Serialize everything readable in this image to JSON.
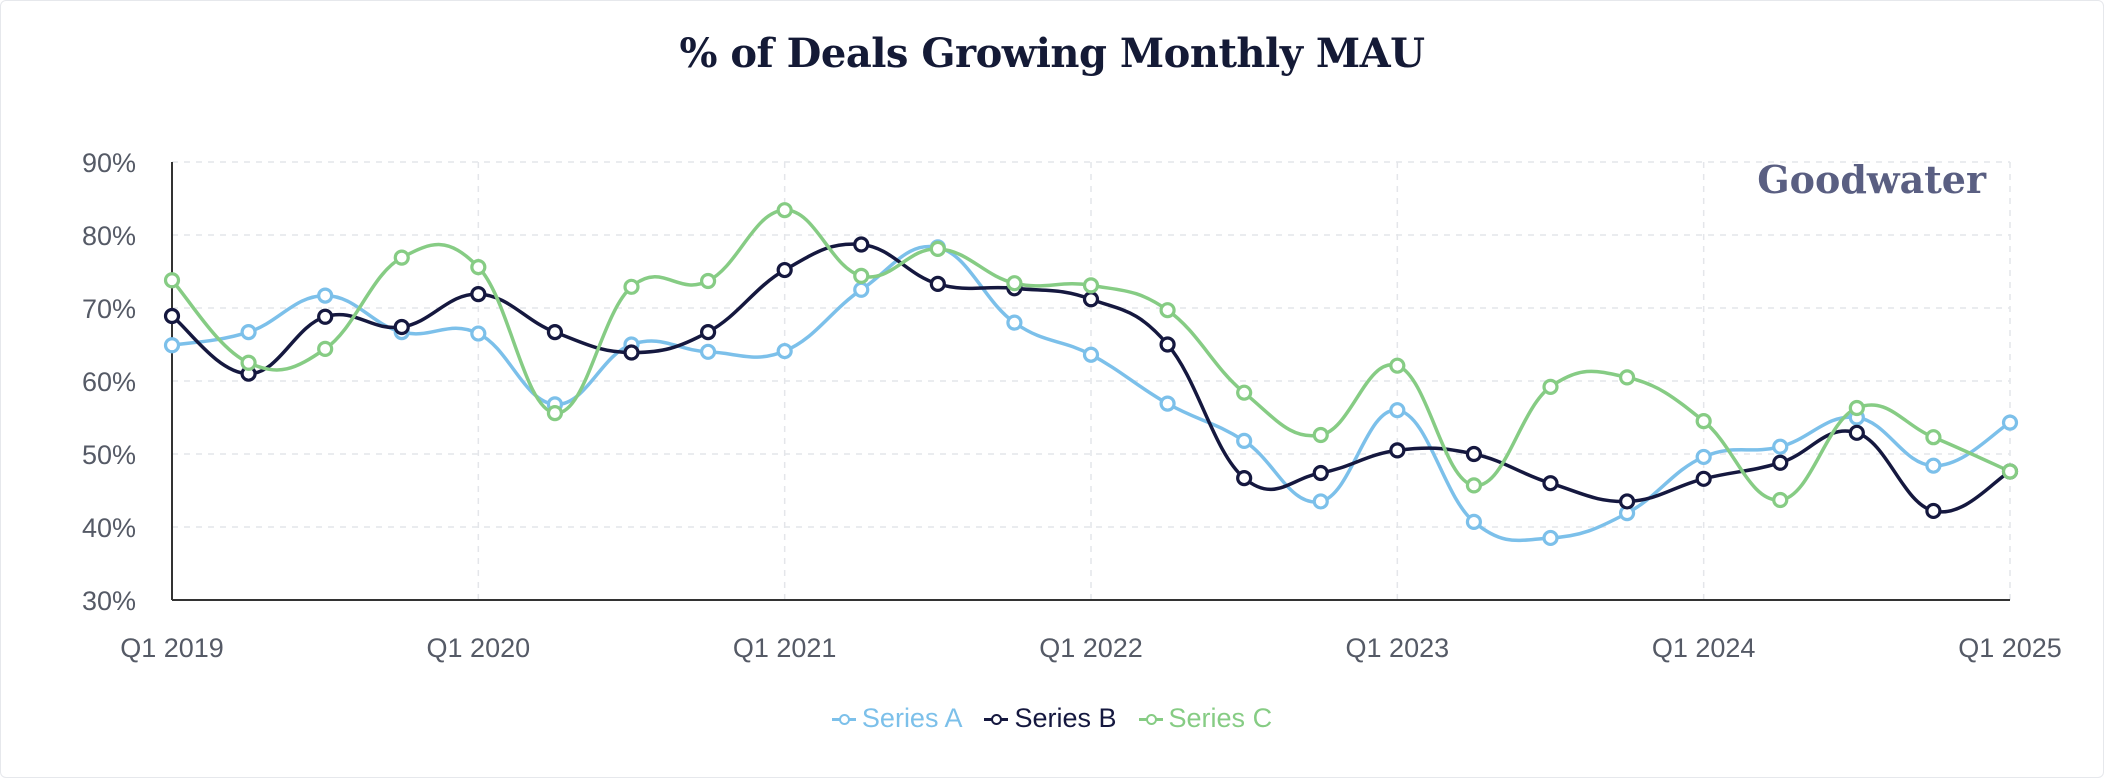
{
  "chart_data": {
    "type": "line",
    "title": "% of Deals Growing Monthly MAU",
    "watermark": "Goodwater",
    "xlabel": "",
    "ylabel": "",
    "ylim": [
      30,
      90
    ],
    "y_ticks": [
      "90%",
      "80%",
      "70%",
      "60%",
      "50%",
      "40%",
      "30%"
    ],
    "y_tick_values": [
      90,
      80,
      70,
      60,
      50,
      40,
      30
    ],
    "x_tick_labels": [
      "Q1 2019",
      "Q1 2020",
      "Q1 2021",
      "Q1 2022",
      "Q1 2023",
      "Q1 2024",
      "Q1 2025"
    ],
    "x_tick_index": [
      0,
      4,
      8,
      12,
      16,
      20,
      24
    ],
    "x": [
      "Q1 2019",
      "Q2 2019",
      "Q3 2019",
      "Q4 2019",
      "Q1 2020",
      "Q2 2020",
      "Q3 2020",
      "Q4 2020",
      "Q1 2021",
      "Q2 2021",
      "Q3 2021",
      "Q4 2021",
      "Q1 2022",
      "Q2 2022",
      "Q3 2022",
      "Q4 2022",
      "Q1 2023",
      "Q2 2023",
      "Q3 2023",
      "Q4 2023",
      "Q1 2024",
      "Q2 2024",
      "Q3 2024",
      "Q4 2024",
      "Q1 2025"
    ],
    "grid": true,
    "legend_position": "bottom-center",
    "series": [
      {
        "name": "Series A",
        "color": "#7cc0ea",
        "values": [
          64.9,
          66.7,
          71.7,
          66.7,
          66.5,
          56.8,
          65.0,
          64.0,
          64.1,
          72.5,
          78.3,
          68.0,
          63.6,
          56.9,
          51.8,
          43.5,
          56.0,
          40.7,
          38.5,
          41.9,
          49.6,
          51.0,
          55.0,
          48.4,
          54.3
        ]
      },
      {
        "name": "Series B",
        "color": "#15183f",
        "values": [
          68.9,
          61.0,
          68.8,
          67.4,
          71.9,
          66.7,
          63.9,
          66.7,
          75.2,
          78.7,
          73.3,
          72.7,
          71.2,
          65.0,
          46.7,
          47.4,
          50.5,
          50.0,
          46.0,
          43.5,
          46.6,
          48.8,
          52.9,
          42.2,
          47.6
        ]
      },
      {
        "name": "Series C",
        "color": "#86cc84",
        "values": [
          73.8,
          62.5,
          64.4,
          76.9,
          75.6,
          55.6,
          72.9,
          73.7,
          83.4,
          74.4,
          78.1,
          73.4,
          73.1,
          69.7,
          58.4,
          52.6,
          62.1,
          45.7,
          59.2,
          60.5,
          54.5,
          43.7,
          56.3,
          52.3,
          47.6
        ]
      }
    ]
  }
}
